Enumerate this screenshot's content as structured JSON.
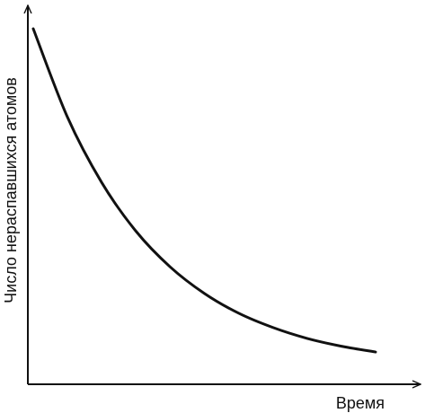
{
  "chart_data": {
    "type": "line",
    "title": "",
    "xlabel": "Время",
    "ylabel": "Число нераспавшихся атомов",
    "grid": false,
    "legend": "none",
    "ticks": false,
    "xlim": [
      0,
      1
    ],
    "ylim": [
      0,
      1
    ],
    "series": [
      {
        "x": [
          0.0,
          0.1,
          0.2,
          0.3,
          0.4,
          0.5,
          0.6,
          0.7,
          0.8,
          0.9,
          1.0
        ],
        "values": [
          1.0,
          0.74,
          0.548,
          0.405,
          0.3,
          0.222,
          0.164,
          0.122,
          0.09,
          0.067,
          0.05
        ]
      }
    ],
    "colors": {
      "axis": "#111111",
      "curve": "#111111"
    }
  }
}
